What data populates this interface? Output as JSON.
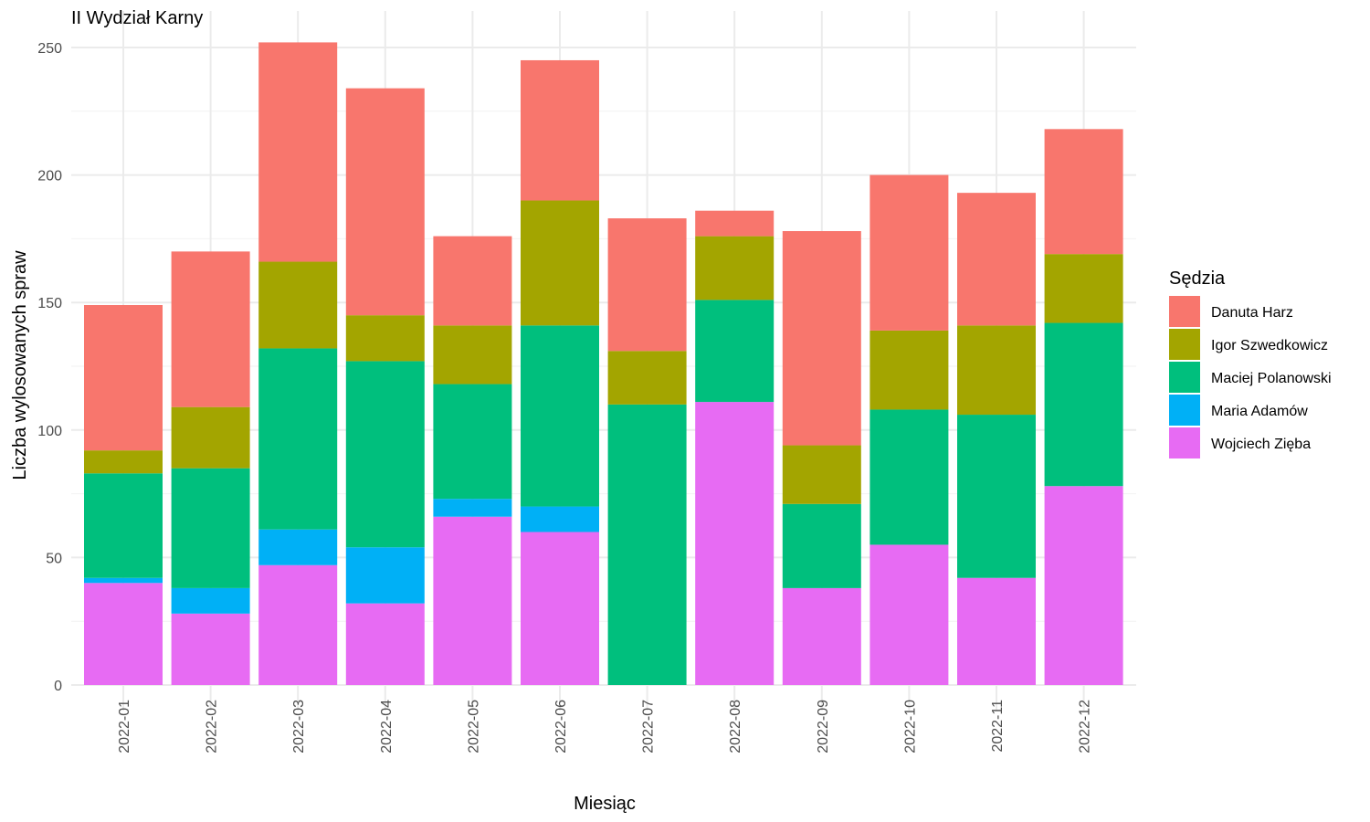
{
  "chart_data": {
    "type": "bar",
    "stacked": true,
    "title": "II Wydział Karny",
    "xlabel": "Miesiąc",
    "ylabel": "Liczba wylosowanych spraw",
    "ylim": [
      0,
      260
    ],
    "yticks": [
      0,
      50,
      100,
      150,
      200,
      250
    ],
    "grid": true,
    "legend_title": "Sędzia",
    "legend_position": "right",
    "categories": [
      "2022-01",
      "2022-02",
      "2022-03",
      "2022-04",
      "2022-05",
      "2022-06",
      "2022-07",
      "2022-08",
      "2022-09",
      "2022-10",
      "2022-11",
      "2022-12"
    ],
    "series": [
      {
        "name": "Wojciech Zięba",
        "color": "#E76BF3",
        "values": [
          40,
          28,
          47,
          32,
          66,
          60,
          0,
          111,
          38,
          55,
          42,
          78
        ]
      },
      {
        "name": "Maria Adamów",
        "color": "#00B0F6",
        "values": [
          2,
          10,
          14,
          22,
          7,
          10,
          0,
          0,
          0,
          0,
          0,
          0
        ]
      },
      {
        "name": "Maciej Polanowski",
        "color": "#00BF7D",
        "values": [
          41,
          47,
          71,
          73,
          45,
          71,
          110,
          40,
          33,
          53,
          64,
          64
        ]
      },
      {
        "name": "Igor Szwedkowicz",
        "color": "#A3A500",
        "values": [
          9,
          24,
          34,
          18,
          23,
          49,
          21,
          25,
          23,
          31,
          35,
          27
        ]
      },
      {
        "name": "Danuta Harz",
        "color": "#F8766D",
        "values": [
          57,
          61,
          86,
          89,
          35,
          55,
          52,
          10,
          84,
          61,
          52,
          49
        ]
      }
    ],
    "legend_order": [
      "Danuta Harz",
      "Igor Szwedkowicz",
      "Maciej Polanowski",
      "Maria Adamów",
      "Wojciech Zięba"
    ]
  }
}
